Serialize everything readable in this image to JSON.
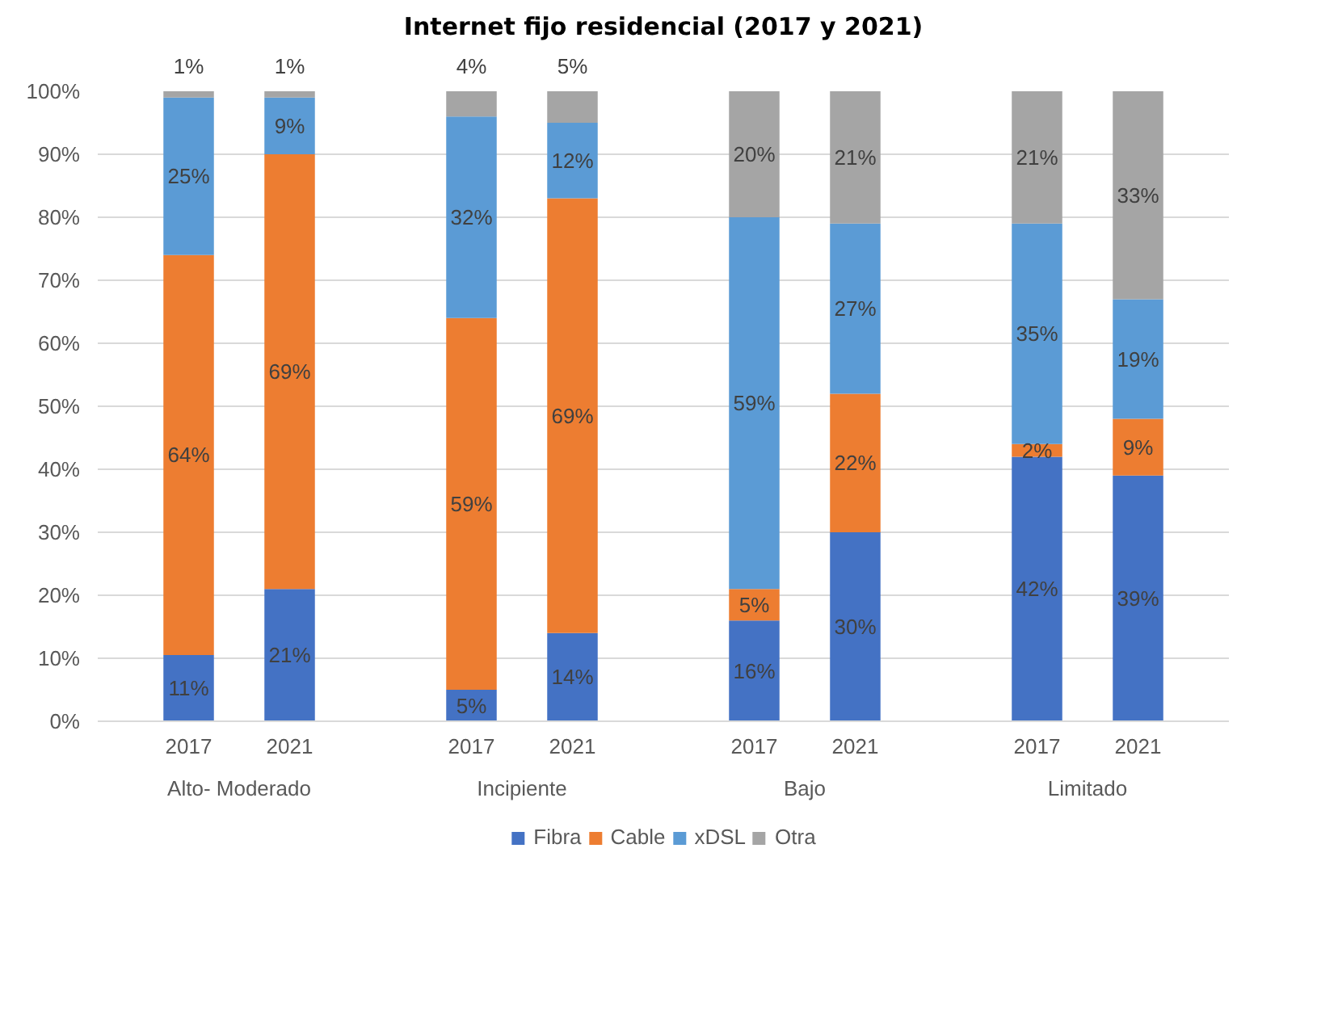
{
  "chart_data": {
    "type": "bar",
    "stacked": true,
    "title": "Internet fijo residencial (2017 y 2021)",
    "categories": [
      "2017",
      "2021",
      "2017",
      "2021",
      "2017",
      "2021",
      "2017",
      "2021"
    ],
    "annotations": [
      "Alto- Moderado",
      "Incipiente",
      "Bajo",
      "Limitado"
    ],
    "series": [
      {
        "name": "Fibra",
        "color": "#4472c4",
        "values": [
          10.5,
          21,
          5,
          14,
          16,
          30,
          42,
          39
        ],
        "value_labels": [
          "11%",
          "21%",
          "5%",
          "14%",
          "16%",
          "30%",
          "42%",
          "39%"
        ]
      },
      {
        "name": "Cable",
        "color": "#ed7d31",
        "values": [
          63.5,
          69,
          59,
          69,
          5,
          22,
          2,
          9
        ],
        "value_labels": [
          "64%",
          "69%",
          "59%",
          "69%",
          "5%",
          "22%",
          "2%",
          "9%"
        ]
      },
      {
        "name": "xDSL",
        "color": "#5b9bd5",
        "values": [
          25,
          9,
          32,
          12,
          59,
          27,
          35,
          19
        ],
        "value_labels": [
          "25%",
          "9%",
          "32%",
          "12%",
          "59%",
          "27%",
          "35%",
          "19%"
        ]
      },
      {
        "name": "Otra",
        "color": "#a5a5a5",
        "values": [
          1,
          1,
          4,
          5,
          20,
          21,
          21,
          33
        ],
        "value_labels": [
          "1%",
          "1%",
          "4%",
          "5%",
          "20%",
          "21%",
          "21%",
          "33%"
        ]
      }
    ],
    "ylim": [
      0,
      100
    ],
    "yticks": [
      {
        "value": 0,
        "label": "0%"
      },
      {
        "value": 10,
        "label": "10%"
      },
      {
        "value": 20,
        "label": "20%"
      },
      {
        "value": 30,
        "label": "30%"
      },
      {
        "value": 40,
        "label": "40%"
      },
      {
        "value": 50,
        "label": "50%"
      },
      {
        "value": 60,
        "label": "60%"
      },
      {
        "value": 70,
        "label": "70%"
      },
      {
        "value": 80,
        "label": "80%"
      },
      {
        "value": 90,
        "label": "90%"
      },
      {
        "value": 100,
        "label": "100%"
      }
    ],
    "grid": "y",
    "legend": "bottom"
  }
}
